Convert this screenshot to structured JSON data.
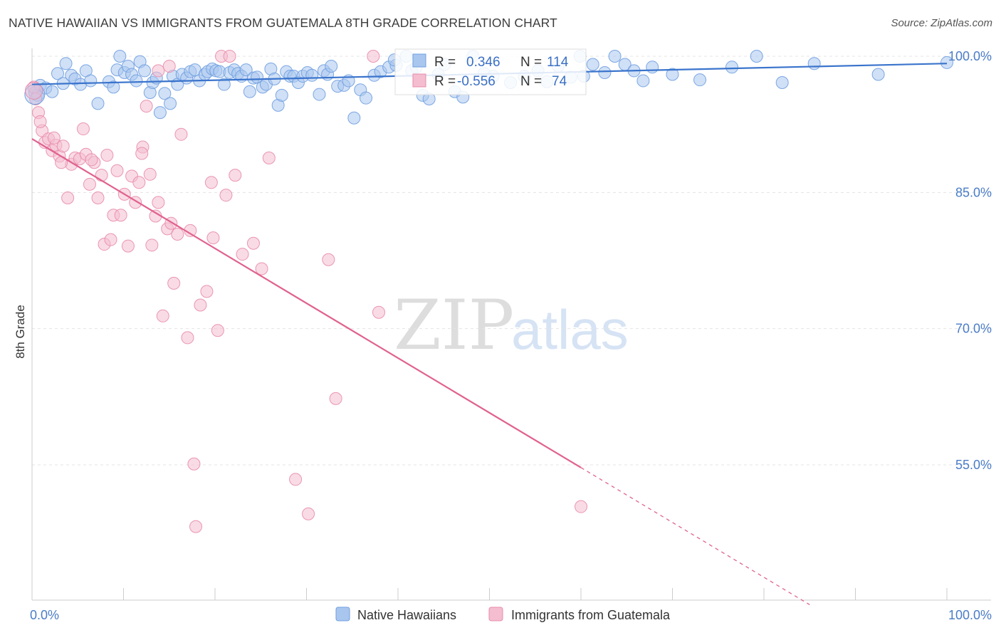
{
  "title": "NATIVE HAWAIIAN VS IMMIGRANTS FROM GUATEMALA 8TH GRADE CORRELATION CHART",
  "source": "Source: ZipAtlas.com",
  "watermark": {
    "zip": "ZIP",
    "atlas": "atlas"
  },
  "chart_data": {
    "type": "scatter",
    "title": "NATIVE HAWAIIAN VS IMMIGRANTS FROM GUATEMALA 8TH GRADE CORRELATION CHART",
    "xlabel": "",
    "ylabel": "8th Grade",
    "xlim": [
      0,
      100
    ],
    "ylim": [
      40,
      100
    ],
    "x_tick_labels": [
      "0.0%",
      "100.0%"
    ],
    "y_ticks": [
      55,
      70,
      85,
      100
    ],
    "y_tick_labels": [
      "55.0%",
      "70.0%",
      "85.0%",
      "100.0%"
    ],
    "grid": true,
    "legend": {
      "placement": "bottom-center",
      "entries": [
        "Native Hawaiians",
        "Immigrants from Guatemala"
      ]
    },
    "stats": [
      {
        "r_label": "R =",
        "r": "0.346",
        "n_label": "N =",
        "n": "114"
      },
      {
        "r_label": "R =",
        "r": "-0.556",
        "n_label": "N =",
        "n": "74"
      }
    ],
    "series": [
      {
        "name": "Native Hawaiians",
        "color": "#6f9fe0",
        "fill": "#a9c6ef",
        "trend": {
          "x": [
            0,
            100
          ],
          "y": [
            96.9,
            99.2
          ],
          "color": "#3a74cc"
        },
        "points": [
          [
            0.3,
            96.0
          ],
          [
            0.6,
            95.7
          ],
          [
            0.9,
            96.8
          ],
          [
            1.5,
            96.5
          ],
          [
            2.2,
            96.1
          ],
          [
            2.8,
            98.1
          ],
          [
            3.4,
            97.0
          ],
          [
            3.7,
            99.2
          ],
          [
            4.3,
            97.9
          ],
          [
            4.7,
            97.5
          ],
          [
            5.3,
            96.9
          ],
          [
            5.9,
            98.4
          ],
          [
            6.4,
            97.3
          ],
          [
            7.2,
            94.8
          ],
          [
            8.4,
            97.2
          ],
          [
            8.9,
            96.6
          ],
          [
            9.3,
            98.5
          ],
          [
            9.6,
            100.0
          ],
          [
            10.1,
            98.2
          ],
          [
            10.5,
            98.9
          ],
          [
            10.9,
            98.0
          ],
          [
            11.4,
            97.3
          ],
          [
            11.8,
            99.4
          ],
          [
            12.3,
            98.4
          ],
          [
            12.9,
            96.0
          ],
          [
            13.2,
            97.1
          ],
          [
            13.6,
            97.6
          ],
          [
            14.0,
            93.8
          ],
          [
            14.5,
            95.9
          ],
          [
            15.1,
            94.8
          ],
          [
            15.4,
            97.8
          ],
          [
            15.9,
            96.9
          ],
          [
            16.4,
            98.0
          ],
          [
            16.9,
            97.6
          ],
          [
            17.3,
            98.3
          ],
          [
            17.8,
            98.5
          ],
          [
            18.3,
            97.3
          ],
          [
            18.9,
            98.0
          ],
          [
            19.2,
            98.3
          ],
          [
            19.7,
            98.6
          ],
          [
            20.1,
            98.4
          ],
          [
            20.5,
            98.3
          ],
          [
            21.0,
            96.9
          ],
          [
            21.6,
            98.2
          ],
          [
            22.1,
            98.5
          ],
          [
            22.5,
            98.1
          ],
          [
            22.9,
            97.8
          ],
          [
            23.4,
            98.5
          ],
          [
            23.8,
            96.1
          ],
          [
            24.2,
            97.6
          ],
          [
            24.6,
            97.7
          ],
          [
            25.2,
            96.6
          ],
          [
            25.6,
            96.9
          ],
          [
            26.1,
            98.6
          ],
          [
            26.5,
            97.5
          ],
          [
            26.9,
            94.6
          ],
          [
            27.3,
            95.7
          ],
          [
            27.8,
            98.3
          ],
          [
            28.2,
            97.8
          ],
          [
            28.6,
            97.8
          ],
          [
            29.1,
            97.1
          ],
          [
            29.6,
            97.8
          ],
          [
            30.1,
            98.2
          ],
          [
            30.6,
            97.9
          ],
          [
            31.4,
            95.8
          ],
          [
            31.9,
            98.4
          ],
          [
            32.3,
            98.0
          ],
          [
            32.7,
            98.9
          ],
          [
            33.4,
            96.7
          ],
          [
            34.1,
            96.8
          ],
          [
            34.6,
            97.3
          ],
          [
            35.2,
            93.2
          ],
          [
            35.9,
            96.3
          ],
          [
            36.5,
            95.4
          ],
          [
            37.4,
            97.9
          ],
          [
            38.1,
            98.3
          ],
          [
            39.0,
            98.8
          ],
          [
            39.8,
            99.0
          ],
          [
            40.9,
            100.0
          ],
          [
            41.5,
            98.4
          ],
          [
            42.7,
            95.7
          ],
          [
            43.4,
            95.3
          ],
          [
            44.4,
            98.0
          ],
          [
            45.1,
            99.1
          ],
          [
            46.2,
            96.1
          ],
          [
            47.1,
            95.5
          ],
          [
            48.2,
            100.0
          ],
          [
            49.4,
            98.1
          ],
          [
            50.4,
            97.8
          ],
          [
            52.3,
            97.1
          ],
          [
            53.8,
            97.8
          ],
          [
            55.3,
            98.4
          ],
          [
            56.3,
            97.2
          ],
          [
            57.5,
            98.9
          ],
          [
            58.9,
            97.7
          ],
          [
            59.9,
            100.0
          ],
          [
            60.3,
            97.8
          ],
          [
            61.3,
            99.1
          ],
          [
            62.6,
            98.2
          ],
          [
            63.7,
            100.0
          ],
          [
            64.8,
            99.1
          ],
          [
            65.8,
            98.4
          ],
          [
            66.8,
            97.3
          ],
          [
            67.8,
            98.8
          ],
          [
            70.0,
            98.0
          ],
          [
            73.0,
            97.4
          ],
          [
            76.5,
            98.8
          ],
          [
            79.2,
            100.0
          ],
          [
            82.0,
            97.1
          ],
          [
            85.5,
            99.2
          ],
          [
            92.5,
            98.0
          ],
          [
            100.0,
            99.3
          ],
          [
            39.6,
            99.6
          ],
          [
            42.0,
            98.8
          ]
        ]
      },
      {
        "name": "Immigrants from Guatemala",
        "color": "#e88cab",
        "fill": "#f4bdd0",
        "trend": {
          "x": [
            0,
            60
          ],
          "y": [
            90.9,
            54.7
          ],
          "dash_x": [
            60,
            85
          ],
          "dash_y": [
            54.7,
            39.6
          ],
          "color": "#e0628f"
        },
        "points": [
          [
            0.2,
            96.6
          ],
          [
            0.4,
            95.3
          ],
          [
            0.7,
            93.8
          ],
          [
            1.1,
            91.8
          ],
          [
            1.4,
            90.5
          ],
          [
            1.8,
            90.9
          ],
          [
            2.2,
            89.6
          ],
          [
            2.6,
            90.2
          ],
          [
            3.0,
            89.0
          ],
          [
            3.4,
            90.1
          ],
          [
            3.9,
            84.4
          ],
          [
            4.3,
            88.1
          ],
          [
            4.7,
            88.8
          ],
          [
            5.2,
            88.7
          ],
          [
            5.6,
            92.0
          ],
          [
            5.9,
            89.2
          ],
          [
            6.3,
            85.9
          ],
          [
            6.8,
            88.3
          ],
          [
            7.2,
            84.4
          ],
          [
            7.6,
            86.9
          ],
          [
            7.9,
            79.3
          ],
          [
            8.2,
            89.1
          ],
          [
            8.6,
            79.8
          ],
          [
            8.9,
            82.5
          ],
          [
            9.3,
            87.4
          ],
          [
            9.7,
            82.5
          ],
          [
            10.1,
            84.8
          ],
          [
            10.5,
            79.1
          ],
          [
            10.9,
            86.8
          ],
          [
            11.3,
            83.9
          ],
          [
            11.7,
            86.1
          ],
          [
            12.1,
            90.0
          ],
          [
            12.5,
            94.5
          ],
          [
            12.9,
            87.0
          ],
          [
            13.1,
            79.2
          ],
          [
            13.5,
            82.4
          ],
          [
            13.8,
            83.9
          ],
          [
            14.3,
            71.4
          ],
          [
            14.8,
            81.0
          ],
          [
            15.2,
            81.6
          ],
          [
            15.5,
            75.0
          ],
          [
            15.9,
            80.4
          ],
          [
            16.3,
            91.4
          ],
          [
            17.0,
            69.0
          ],
          [
            17.3,
            80.8
          ],
          [
            17.7,
            55.1
          ],
          [
            17.9,
            48.2
          ],
          [
            18.4,
            72.6
          ],
          [
            19.1,
            74.1
          ],
          [
            19.6,
            86.1
          ],
          [
            19.8,
            80.0
          ],
          [
            20.3,
            69.8
          ],
          [
            20.7,
            100.0
          ],
          [
            21.2,
            84.7
          ],
          [
            21.6,
            100.0
          ],
          [
            22.2,
            86.9
          ],
          [
            23.0,
            78.2
          ],
          [
            24.2,
            79.4
          ],
          [
            25.1,
            76.6
          ],
          [
            25.9,
            88.8
          ],
          [
            28.8,
            53.4
          ],
          [
            30.2,
            49.6
          ],
          [
            32.4,
            77.6
          ],
          [
            33.2,
            62.3
          ],
          [
            37.3,
            100.0
          ],
          [
            37.9,
            71.8
          ],
          [
            60.0,
            50.4
          ],
          [
            13.8,
            98.4
          ],
          [
            3.2,
            88.3
          ],
          [
            12.0,
            89.3
          ],
          [
            15.0,
            98.9
          ],
          [
            0.9,
            92.8
          ],
          [
            2.4,
            91.0
          ],
          [
            6.5,
            88.6
          ]
        ]
      }
    ]
  }
}
